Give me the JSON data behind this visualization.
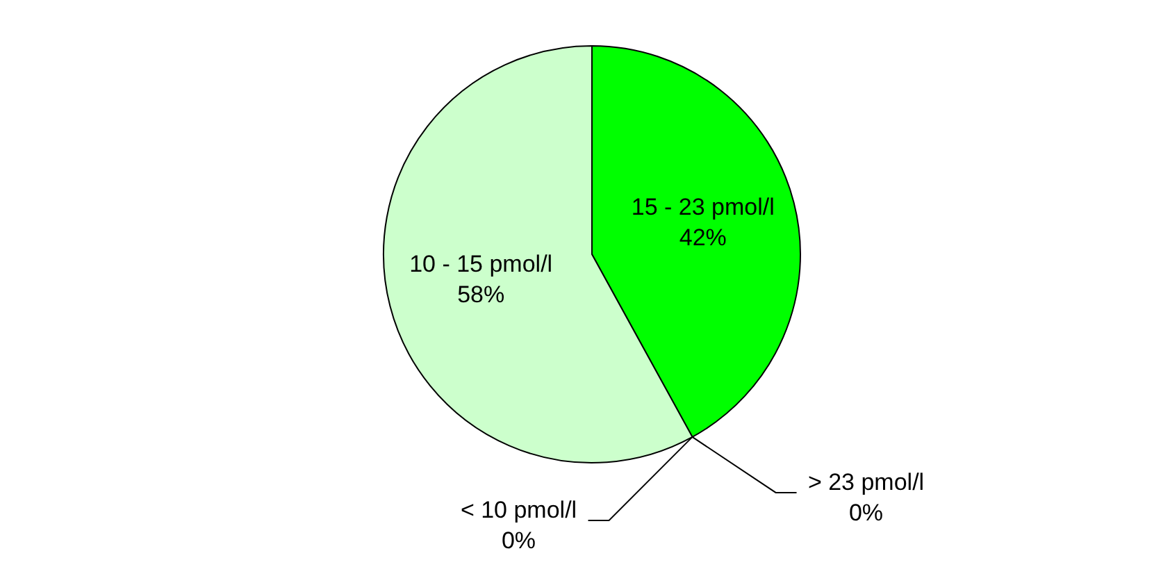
{
  "chart_data": {
    "type": "pie",
    "categories": [
      "15 - 23 pmol/l",
      "> 23 pmol/l",
      "< 10 pmol/l",
      "10 - 15 pmol/l"
    ],
    "values": [
      42,
      0,
      0,
      58
    ],
    "value_labels": [
      "42%",
      "0%",
      "0%",
      "58%"
    ],
    "colors": [
      "#00ff00",
      "#008000",
      "#668066",
      "#ccffcc"
    ],
    "legend": false
  }
}
